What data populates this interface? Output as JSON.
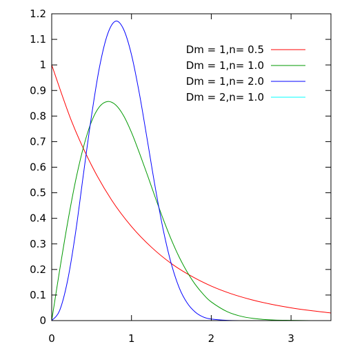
{
  "chart_data": {
    "type": "line",
    "title": "",
    "xlabel": "",
    "ylabel": "",
    "xlim": [
      0,
      3.5
    ],
    "ylim": [
      0,
      1.2
    ],
    "x_ticks": [
      {
        "value": 0,
        "label": "0"
      },
      {
        "value": 1,
        "label": "1"
      },
      {
        "value": 2,
        "label": "2"
      },
      {
        "value": 3,
        "label": "3"
      }
    ],
    "y_ticks": [
      {
        "value": 0,
        "label": "0"
      },
      {
        "value": 0.1,
        "label": "0.1"
      },
      {
        "value": 0.2,
        "label": "0.2"
      },
      {
        "value": 0.3,
        "label": "0.3"
      },
      {
        "value": 0.4,
        "label": "0.4"
      },
      {
        "value": 0.5,
        "label": "0.5"
      },
      {
        "value": 0.6,
        "label": "0.6"
      },
      {
        "value": 0.7,
        "label": "0.7"
      },
      {
        "value": 0.8,
        "label": "0.8"
      },
      {
        "value": 0.9,
        "label": "0.9"
      },
      {
        "value": 1,
        "label": "1"
      },
      {
        "value": 1.1,
        "label": "1.1"
      },
      {
        "value": 1.2,
        "label": "1.2"
      }
    ],
    "grid": false,
    "legend_position": "top-right",
    "series": [
      {
        "name": "Dm = 1,n= 0.5",
        "color": "#ff0000",
        "x": [
          0,
          0.25,
          0.5,
          0.75,
          1.0,
          1.25,
          1.5,
          1.75,
          2.0,
          2.25,
          2.5,
          2.75,
          3.0,
          3.25,
          3.5
        ],
        "y": [
          1.0,
          0.779,
          0.607,
          0.472,
          0.368,
          0.287,
          0.223,
          0.174,
          0.135,
          0.105,
          0.082,
          0.064,
          0.05,
          0.039,
          0.03
        ]
      },
      {
        "name": "Dm = 1,n= 1.0",
        "color": "#009900",
        "x": [
          0,
          0.1,
          0.2,
          0.3,
          0.4,
          0.5,
          0.6,
          0.7,
          0.8,
          0.9,
          1.0,
          1.1,
          1.2,
          1.3,
          1.4,
          1.5,
          1.6,
          1.7,
          1.8,
          1.9,
          2.0,
          2.2,
          2.4,
          2.6,
          2.8,
          3.0,
          3.25,
          3.5
        ],
        "y": [
          0,
          0.198,
          0.384,
          0.548,
          0.681,
          0.779,
          0.837,
          0.857,
          0.844,
          0.802,
          0.736,
          0.655,
          0.569,
          0.48,
          0.395,
          0.316,
          0.247,
          0.189,
          0.141,
          0.103,
          0.073,
          0.035,
          0.015,
          0.006,
          0.002,
          0.001,
          0.0,
          0.0
        ]
      },
      {
        "name": "Dm = 1,n= 2.0",
        "color": "#0000ff",
        "x": [
          0,
          0.1,
          0.2,
          0.3,
          0.4,
          0.5,
          0.6,
          0.7,
          0.8,
          0.9,
          1.0,
          1.1,
          1.2,
          1.3,
          1.4,
          1.5,
          1.6,
          1.7,
          1.8,
          1.9,
          2.0,
          2.2,
          2.4,
          2.6,
          3.0,
          3.5
        ],
        "y": [
          0,
          0.04,
          0.158,
          0.346,
          0.578,
          0.803,
          0.993,
          1.12,
          1.171,
          1.14,
          1.04,
          0.886,
          0.703,
          0.517,
          0.352,
          0.221,
          0.127,
          0.068,
          0.033,
          0.014,
          0.006,
          0.001,
          0.0,
          0.0,
          0.0,
          0.0
        ]
      },
      {
        "name": "Dm = 2,n= 1.0",
        "color": "#00ffff",
        "x": [
          0,
          3.5
        ],
        "y": [
          0,
          0
        ]
      }
    ]
  }
}
